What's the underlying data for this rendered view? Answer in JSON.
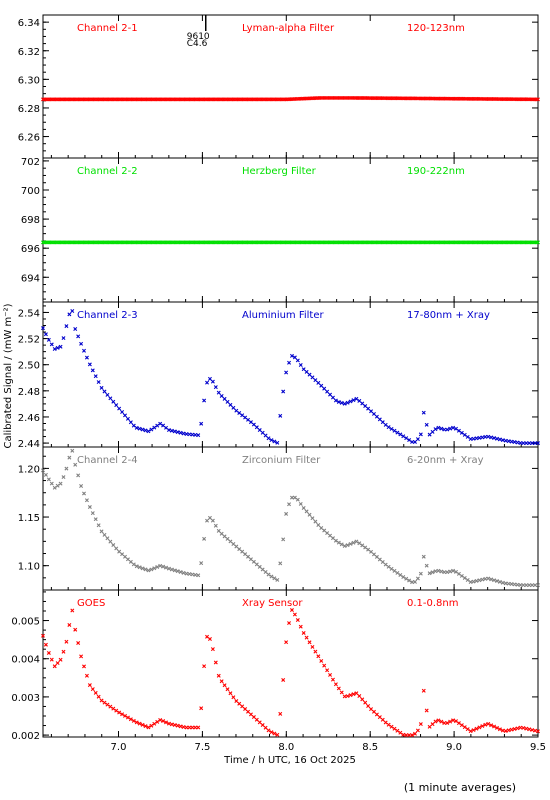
{
  "figure": {
    "xlabel": "Time / h UTC, 16 Oct 2025",
    "ylabel": "Calibrated Signal / (mW m⁻²)",
    "footnote": "(1 minute averages)",
    "xlim": [
      6.55,
      9.5
    ],
    "xticks": [
      7.0,
      7.5,
      8.0,
      8.5,
      9.0,
      9.5
    ],
    "xtick_labels": [
      "7.0",
      "7.5",
      "8.0",
      "8.5",
      "9.0",
      "9.5"
    ]
  },
  "chart_data": [
    {
      "type": "scatter",
      "channel": "Channel 2-1",
      "filter": "Lyman-alpha Filter",
      "range": "120-123nm",
      "color": "#ff0000",
      "ylim": [
        6.245,
        6.345
      ],
      "yticks": [
        6.26,
        6.28,
        6.3,
        6.32,
        6.34
      ],
      "ytick_labels": [
        "6.26",
        "6.28",
        "6.30",
        "6.32",
        "6.34"
      ],
      "marker_annotation": {
        "x": 7.52,
        "line1": "9610",
        "line2": "C4.6"
      },
      "series": [
        {
          "x": [
            6.55,
            8.0,
            8.2,
            8.4,
            9.5
          ],
          "y": [
            6.286,
            6.286,
            6.287,
            6.287,
            6.286
          ]
        }
      ]
    },
    {
      "type": "scatter",
      "channel": "Channel 2-2",
      "filter": "Herzberg Filter",
      "range": "190-222nm",
      "color": "#00e000",
      "ylim": [
        692.3,
        702.2
      ],
      "yticks": [
        694,
        696,
        698,
        700,
        702
      ],
      "ytick_labels": [
        "694",
        "696",
        "698",
        "700",
        "702"
      ],
      "series": [
        {
          "x": [
            6.55,
            9.5
          ],
          "y": [
            696.4,
            696.4
          ]
        }
      ]
    },
    {
      "type": "scatter",
      "channel": "Channel 2-3",
      "filter": "Aluminium Filter",
      "range": "17-80nm + Xray",
      "color": "#0000cc",
      "ylim": [
        2.437,
        2.548
      ],
      "yticks": [
        2.44,
        2.46,
        2.48,
        2.5,
        2.52,
        2.54
      ],
      "ytick_labels": [
        "2.44",
        "2.46",
        "2.48",
        "2.50",
        "2.52",
        "2.54"
      ],
      "series": [
        {
          "x": [
            6.55,
            6.58,
            6.62,
            6.66,
            6.7,
            6.72,
            6.74,
            6.78,
            6.83,
            6.9,
            7.0,
            7.1,
            7.18,
            7.25,
            7.3,
            7.4,
            7.48,
            7.5,
            7.52,
            7.55,
            7.6,
            7.7,
            7.8,
            7.9,
            7.95,
            7.97,
            8.0,
            8.03,
            8.06,
            8.1,
            8.2,
            8.3,
            8.35,
            8.42,
            8.5,
            8.6,
            8.7,
            8.76,
            8.8,
            8.82,
            8.85,
            8.9,
            8.95,
            9.0,
            9.1,
            9.2,
            9.3,
            9.4,
            9.5
          ],
          "y": [
            2.528,
            2.52,
            2.512,
            2.514,
            2.535,
            2.545,
            2.528,
            2.515,
            2.5,
            2.482,
            2.467,
            2.452,
            2.449,
            2.455,
            2.45,
            2.447,
            2.446,
            2.46,
            2.485,
            2.49,
            2.478,
            2.465,
            2.455,
            2.443,
            2.44,
            2.47,
            2.495,
            2.507,
            2.505,
            2.497,
            2.485,
            2.472,
            2.47,
            2.474,
            2.465,
            2.453,
            2.445,
            2.44,
            2.445,
            2.464,
            2.446,
            2.452,
            2.45,
            2.452,
            2.443,
            2.445,
            2.442,
            2.44,
            2.44
          ]
        }
      ]
    },
    {
      "type": "scatter",
      "channel": "Channel 2-4",
      "filter": "Zirconium Filter",
      "range": "6-20nm + Xray",
      "color": "#808080",
      "ylim": [
        1.075,
        1.222
      ],
      "yticks": [
        1.1,
        1.15,
        1.2
      ],
      "ytick_labels": [
        "1.10",
        "1.15",
        "1.20"
      ],
      "series": [
        {
          "x": [
            6.55,
            6.58,
            6.62,
            6.66,
            6.7,
            6.72,
            6.74,
            6.78,
            6.83,
            6.9,
            7.0,
            7.1,
            7.18,
            7.25,
            7.3,
            7.4,
            7.48,
            7.5,
            7.52,
            7.55,
            7.6,
            7.7,
            7.8,
            7.9,
            7.95,
            7.97,
            8.0,
            8.03,
            8.06,
            8.1,
            8.2,
            8.3,
            8.35,
            8.42,
            8.5,
            8.6,
            8.7,
            8.76,
            8.8,
            8.82,
            8.85,
            8.9,
            8.95,
            9.0,
            9.1,
            9.2,
            9.3,
            9.4,
            9.5
          ],
          "y": [
            1.198,
            1.19,
            1.18,
            1.185,
            1.205,
            1.222,
            1.205,
            1.18,
            1.16,
            1.135,
            1.115,
            1.1,
            1.095,
            1.1,
            1.097,
            1.092,
            1.09,
            1.11,
            1.145,
            1.15,
            1.135,
            1.12,
            1.105,
            1.09,
            1.085,
            1.11,
            1.155,
            1.17,
            1.17,
            1.16,
            1.14,
            1.125,
            1.12,
            1.125,
            1.115,
            1.1,
            1.088,
            1.082,
            1.09,
            1.11,
            1.092,
            1.095,
            1.093,
            1.095,
            1.083,
            1.087,
            1.082,
            1.08,
            1.08
          ]
        }
      ]
    },
    {
      "type": "scatter",
      "channel": "GOES",
      "filter": "Xray Sensor",
      "range": "0.1-0.8nm",
      "color": "#ff0000",
      "ylim": [
        0.00195,
        0.0058
      ],
      "yticks": [
        0.002,
        0.003,
        0.004,
        0.005
      ],
      "ytick_labels": [
        "0.002",
        "0.003",
        "0.004",
        "0.005"
      ],
      "series": [
        {
          "x": [
            6.55,
            6.58,
            6.62,
            6.66,
            6.7,
            6.72,
            6.74,
            6.78,
            6.83,
            6.9,
            7.0,
            7.1,
            7.18,
            7.25,
            7.3,
            7.4,
            7.48,
            7.5,
            7.52,
            7.55,
            7.6,
            7.7,
            7.8,
            7.9,
            7.95,
            7.97,
            8.0,
            8.03,
            8.06,
            8.1,
            8.2,
            8.3,
            8.35,
            8.42,
            8.5,
            8.6,
            8.7,
            8.76,
            8.8,
            8.82,
            8.85,
            8.9,
            8.95,
            9.0,
            9.1,
            9.2,
            9.3,
            9.4,
            9.5
          ],
          "y": [
            0.0046,
            0.0042,
            0.0038,
            0.004,
            0.0046,
            0.0054,
            0.0048,
            0.004,
            0.0033,
            0.0029,
            0.0026,
            0.00235,
            0.0022,
            0.0024,
            0.0023,
            0.0022,
            0.0022,
            0.003,
            0.0046,
            0.0045,
            0.0035,
            0.0029,
            0.0025,
            0.0021,
            0.002,
            0.0028,
            0.0045,
            0.0053,
            0.0051,
            0.0047,
            0.004,
            0.0033,
            0.003,
            0.0031,
            0.0027,
            0.0023,
            0.002,
            0.002,
            0.0022,
            0.0032,
            0.0022,
            0.0024,
            0.0023,
            0.0024,
            0.0021,
            0.0023,
            0.0021,
            0.0022,
            0.0021
          ]
        }
      ]
    }
  ]
}
